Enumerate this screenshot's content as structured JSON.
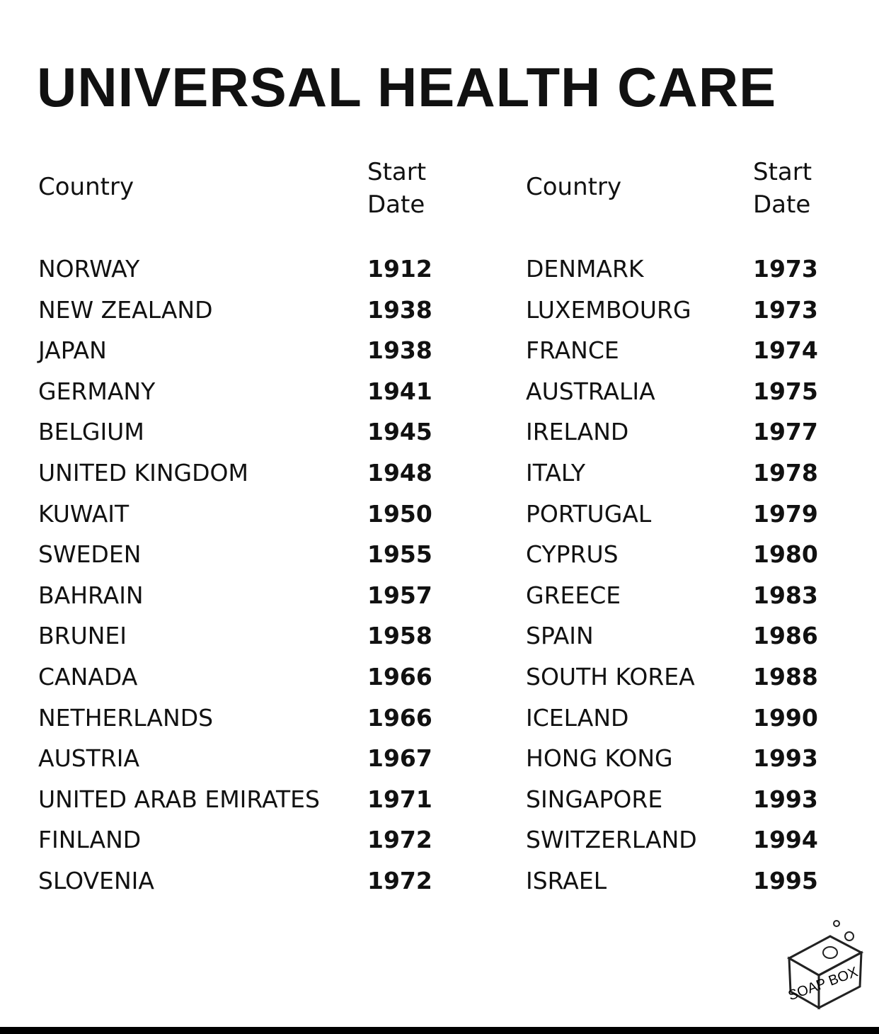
{
  "title": "UNIVERSAL HEALTH CARE",
  "tables": [
    {
      "header": [
        "Country",
        "Start Date"
      ],
      "rows": [
        [
          "NORWAY",
          1912
        ],
        [
          "NEW ZEALAND",
          1938
        ],
        [
          "JAPAN",
          1938
        ],
        [
          "GERMANY",
          1941
        ],
        [
          "BELGIUM",
          1945
        ],
        [
          "UNITED KINGDOM",
          1948
        ],
        [
          "KUWAIT",
          1950
        ],
        [
          "SWEDEN",
          1955
        ],
        [
          "BAHRAIN",
          1957
        ],
        [
          "BRUNEI",
          1958
        ],
        [
          "CANADA",
          1966
        ],
        [
          "NETHERLANDS",
          1966
        ],
        [
          "AUSTRIA",
          1967
        ],
        [
          "UNITED ARAB EMIRATES",
          1971
        ],
        [
          "FINLAND",
          1972
        ],
        [
          "SLOVENIA",
          1972
        ]
      ]
    },
    {
      "header": [
        "Country",
        "Start Date"
      ],
      "rows": [
        [
          "DENMARK",
          1973
        ],
        [
          "LUXEMBOURG",
          1973
        ],
        [
          "FRANCE",
          1974
        ],
        [
          "AUSTRALIA",
          1975
        ],
        [
          "IRELAND",
          1977
        ],
        [
          "ITALY",
          1978
        ],
        [
          "PORTUGAL",
          1979
        ],
        [
          "CYPRUS",
          1980
        ],
        [
          "GREECE",
          1983
        ],
        [
          "SPAIN",
          1986
        ],
        [
          "SOUTH KOREA",
          1988
        ],
        [
          "ICELAND",
          1990
        ],
        [
          "HONG KONG",
          1993
        ],
        [
          "SINGAPORE",
          1993
        ],
        [
          "SWITZERLAND",
          1994
        ],
        [
          "ISRAEL",
          1995
        ]
      ]
    }
  ],
  "logo": "SOAP BOX"
}
